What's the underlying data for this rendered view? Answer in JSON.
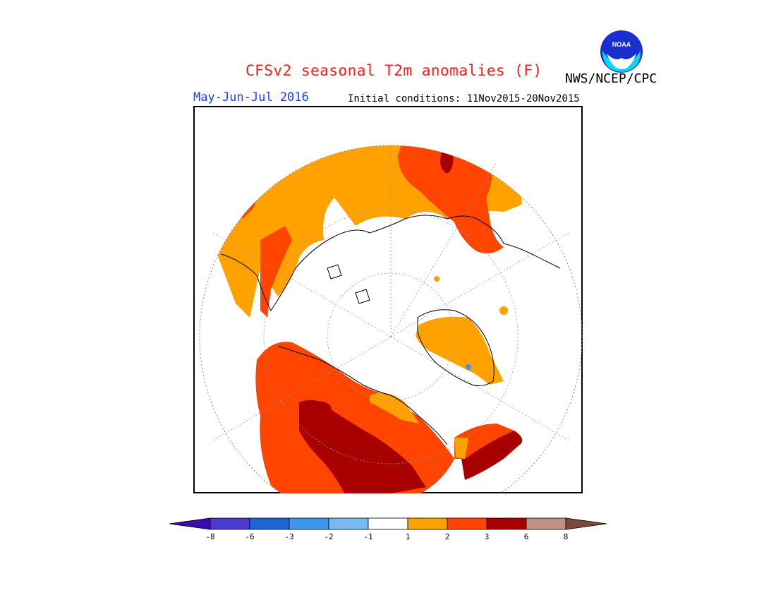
{
  "header": {
    "title": "CFSv2 seasonal T2m anomalies (F)",
    "season": "May-Jun-Jul 2016",
    "initial_conditions": "Initial conditions: 11Nov2015-20Nov2015",
    "agency": "NWS/NCEP/CPC",
    "logo_text": "NOAA"
  },
  "colors": {
    "title": "#ff1a1a",
    "season": "#1a3cff",
    "map_palette": [
      "#3a0ea8",
      "#4a3ccf",
      "#1e66d6",
      "#3e97ec",
      "#7ab9f2",
      "#ffffff",
      "#ffa200",
      "#ff4500",
      "#a80000",
      "#c09080",
      "#7a4a3a"
    ]
  },
  "colorbar": {
    "labels": [
      "-8",
      "-6",
      "-3",
      "-2",
      "-1",
      "1",
      "2",
      "3",
      "6",
      "8"
    ],
    "colors": [
      "#4a3ccf",
      "#1e66d6",
      "#3e97ec",
      "#7ab9f2",
      "#ffffff",
      "#ffa200",
      "#ff4500",
      "#a80000",
      "#c09080"
    ],
    "left_arrow_color": "#3a0ea8",
    "right_arrow_color": "#7a4a3a"
  }
}
